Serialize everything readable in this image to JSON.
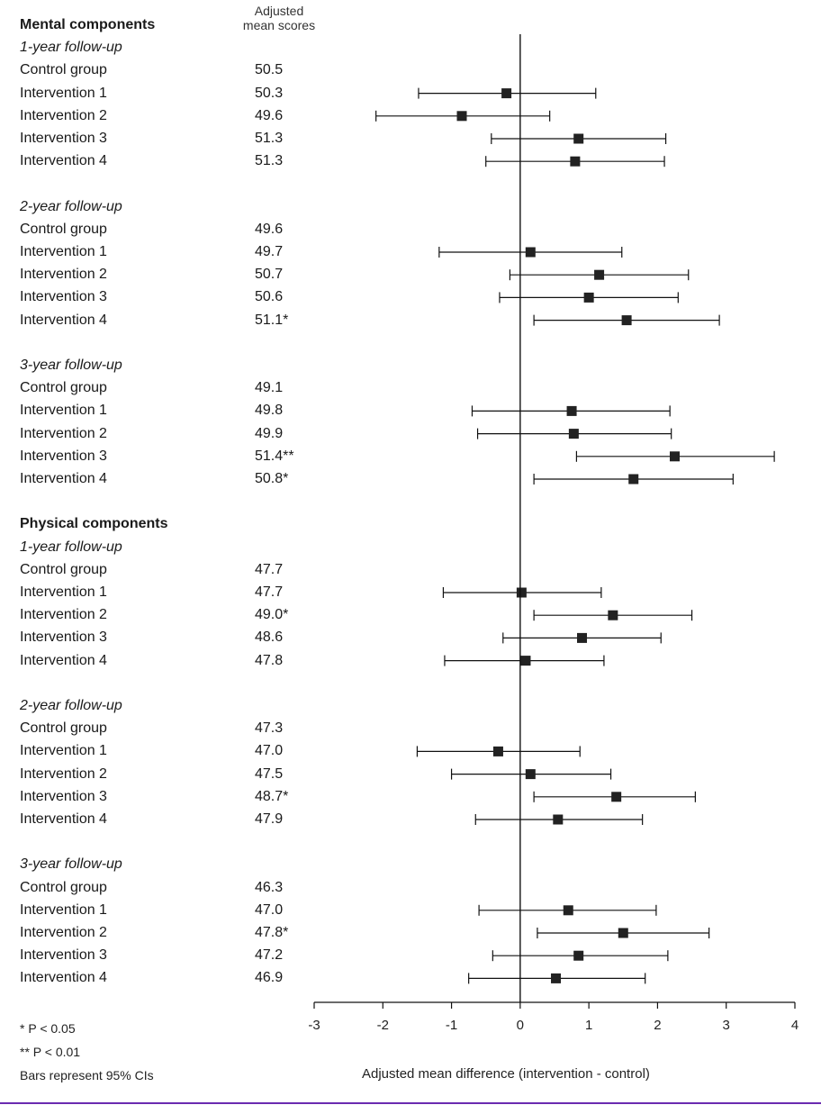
{
  "header": {
    "score_title_line1": "Adjusted",
    "score_title_line2": "mean scores"
  },
  "footnotes": [
    "* P < 0.05",
    "** P < 0.01",
    "Bars represent 95% CIs"
  ],
  "colors": {
    "marker": "#222222",
    "line": "#111111",
    "bottom_rule": "#6a2bb0"
  },
  "chart_data": {
    "type": "scatter",
    "subtype": "forest-plot",
    "xlabel": "Adjusted mean difference (intervention - control)",
    "xlim": [
      -3,
      4
    ],
    "xticks": [
      "-3",
      "-2",
      "-1",
      "0",
      "1",
      "2",
      "3",
      "4"
    ],
    "reference_line_x": 0,
    "rows": [
      {
        "kind": "section",
        "label": "Mental components"
      },
      {
        "kind": "subheader",
        "label": "1-year follow-up"
      },
      {
        "kind": "group",
        "label": "Control group",
        "score": "50.5"
      },
      {
        "kind": "group",
        "label": "Intervention 1",
        "score": "50.3",
        "estimate": -0.2,
        "lower": -1.48,
        "upper": 1.1
      },
      {
        "kind": "group",
        "label": "Intervention 2",
        "score": "49.6",
        "estimate": -0.85,
        "lower": -2.1,
        "upper": 0.43
      },
      {
        "kind": "group",
        "label": "Intervention 3",
        "score": "51.3",
        "estimate": 0.85,
        "lower": -0.42,
        "upper": 2.12
      },
      {
        "kind": "group",
        "label": "Intervention 4",
        "score": "51.3",
        "estimate": 0.8,
        "lower": -0.5,
        "upper": 2.1
      },
      {
        "kind": "spacer"
      },
      {
        "kind": "subheader",
        "label": "2-year follow-up"
      },
      {
        "kind": "group",
        "label": "Control group",
        "score": "49.6"
      },
      {
        "kind": "group",
        "label": "Intervention 1",
        "score": "49.7",
        "estimate": 0.15,
        "lower": -1.18,
        "upper": 1.48
      },
      {
        "kind": "group",
        "label": "Intervention 2",
        "score": "50.7",
        "estimate": 1.15,
        "lower": -0.15,
        "upper": 2.45
      },
      {
        "kind": "group",
        "label": "Intervention 3",
        "score": "50.6",
        "estimate": 1.0,
        "lower": -0.3,
        "upper": 2.3
      },
      {
        "kind": "group",
        "label": "Intervention 4",
        "score": "51.1*",
        "estimate": 1.55,
        "lower": 0.2,
        "upper": 2.9
      },
      {
        "kind": "spacer"
      },
      {
        "kind": "subheader",
        "label": "3-year follow-up"
      },
      {
        "kind": "group",
        "label": "Control group",
        "score": "49.1"
      },
      {
        "kind": "group",
        "label": "Intervention 1",
        "score": "49.8",
        "estimate": 0.75,
        "lower": -0.7,
        "upper": 2.18
      },
      {
        "kind": "group",
        "label": "Intervention 2",
        "score": "49.9",
        "estimate": 0.78,
        "lower": -0.62,
        "upper": 2.2
      },
      {
        "kind": "group",
        "label": "Intervention 3",
        "score": "51.4**",
        "estimate": 2.25,
        "lower": 0.82,
        "upper": 3.7
      },
      {
        "kind": "group",
        "label": "Intervention 4",
        "score": "50.8*",
        "estimate": 1.65,
        "lower": 0.2,
        "upper": 3.1
      },
      {
        "kind": "spacer"
      },
      {
        "kind": "section",
        "label": "Physical components"
      },
      {
        "kind": "subheader",
        "label": "1-year follow-up"
      },
      {
        "kind": "group",
        "label": "Control group",
        "score": "47.7"
      },
      {
        "kind": "group",
        "label": "Intervention 1",
        "score": "47.7",
        "estimate": 0.02,
        "lower": -1.12,
        "upper": 1.18
      },
      {
        "kind": "group",
        "label": "Intervention 2",
        "score": "49.0*",
        "estimate": 1.35,
        "lower": 0.2,
        "upper": 2.5
      },
      {
        "kind": "group",
        "label": "Intervention 3",
        "score": "48.6",
        "estimate": 0.9,
        "lower": -0.25,
        "upper": 2.05
      },
      {
        "kind": "group",
        "label": "Intervention 4",
        "score": "47.8",
        "estimate": 0.08,
        "lower": -1.1,
        "upper": 1.22
      },
      {
        "kind": "spacer"
      },
      {
        "kind": "subheader",
        "label": "2-year follow-up"
      },
      {
        "kind": "group",
        "label": "Control group",
        "score": "47.3"
      },
      {
        "kind": "group",
        "label": "Intervention 1",
        "score": "47.0",
        "estimate": -0.32,
        "lower": -1.5,
        "upper": 0.87
      },
      {
        "kind": "group",
        "label": "Intervention 2",
        "score": "47.5",
        "estimate": 0.15,
        "lower": -1.0,
        "upper": 1.32
      },
      {
        "kind": "group",
        "label": "Intervention 3",
        "score": "48.7*",
        "estimate": 1.4,
        "lower": 0.2,
        "upper": 2.55
      },
      {
        "kind": "group",
        "label": "Intervention 4",
        "score": "47.9",
        "estimate": 0.55,
        "lower": -0.65,
        "upper": 1.78
      },
      {
        "kind": "spacer"
      },
      {
        "kind": "subheader",
        "label": "3-year follow-up"
      },
      {
        "kind": "group",
        "label": "Control group",
        "score": "46.3"
      },
      {
        "kind": "group",
        "label": "Intervention 1",
        "score": "47.0",
        "estimate": 0.7,
        "lower": -0.6,
        "upper": 1.98
      },
      {
        "kind": "group",
        "label": "Intervention 2",
        "score": "47.8*",
        "estimate": 1.5,
        "lower": 0.25,
        "upper": 2.75
      },
      {
        "kind": "group",
        "label": "Intervention 3",
        "score": "47.2",
        "estimate": 0.85,
        "lower": -0.4,
        "upper": 2.15
      },
      {
        "kind": "group",
        "label": "Intervention 4",
        "score": "46.9",
        "estimate": 0.52,
        "lower": -0.75,
        "upper": 1.82
      }
    ]
  }
}
